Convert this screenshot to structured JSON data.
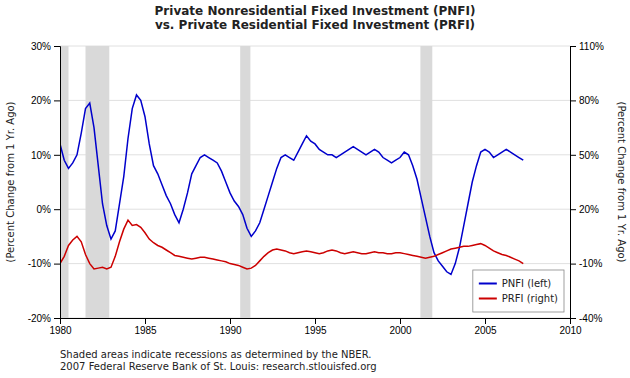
{
  "chart_data": {
    "type": "line",
    "title": "Private Nonresidential Fixed Investment (PNFI)\nvs.  Private Residential Fixed Investment (PRFI)",
    "y_label": "(Percent Change from 1 Yr. Ago)",
    "y2_label": "(Percent Change from 1 Yr. Ago)",
    "annotations": [
      "Shaded areas indicate recessions as determined by the NBER.\n2007 Federal Reserve Bank of St. Louis: research.stlouisfed.org"
    ],
    "xlim": [
      1980,
      2010
    ],
    "xticks": [
      1980,
      1985,
      1990,
      1995,
      2000,
      2005,
      2010
    ],
    "ylim": [
      -20,
      30
    ],
    "yticks": [
      {
        "value": -20,
        "label": "-20%"
      },
      {
        "value": -10,
        "label": "-10%"
      },
      {
        "value": 0,
        "label": "0%"
      },
      {
        "value": 10,
        "label": "10%"
      },
      {
        "value": 20,
        "label": "20%"
      },
      {
        "value": 30,
        "label": "30%"
      }
    ],
    "y2lim": [
      -40,
      110
    ],
    "y2ticks": [
      {
        "value": -40,
        "label": "-40%"
      },
      {
        "value": -10,
        "label": "-10%"
      },
      {
        "value": 20,
        "label": "20%"
      },
      {
        "value": 50,
        "label": "50%"
      },
      {
        "value": 80,
        "label": "80%"
      },
      {
        "value": 110,
        "label": "110%"
      }
    ],
    "grid": true,
    "legend": "lower right",
    "recession_bands": [
      [
        1980.0,
        1980.5
      ],
      [
        1981.5,
        1982.9
      ],
      [
        1990.6,
        1991.2
      ],
      [
        2001.2,
        2001.9
      ]
    ],
    "x": [
      1980.0,
      1980.25,
      1980.5,
      1980.75,
      1981.0,
      1981.25,
      1981.5,
      1981.75,
      1982.0,
      1982.25,
      1982.5,
      1982.75,
      1983.0,
      1983.25,
      1983.5,
      1983.75,
      1984.0,
      1984.25,
      1984.5,
      1984.75,
      1985.0,
      1985.25,
      1985.5,
      1985.75,
      1986.0,
      1986.25,
      1986.5,
      1986.75,
      1987.0,
      1987.25,
      1987.5,
      1987.75,
      1988.0,
      1988.25,
      1988.5,
      1988.75,
      1989.0,
      1989.25,
      1989.5,
      1989.75,
      1990.0,
      1990.25,
      1990.5,
      1990.75,
      1991.0,
      1991.25,
      1991.5,
      1991.75,
      1992.0,
      1992.25,
      1992.5,
      1992.75,
      1993.0,
      1993.25,
      1993.5,
      1993.75,
      1994.0,
      1994.25,
      1994.5,
      1994.75,
      1995.0,
      1995.25,
      1995.5,
      1995.75,
      1996.0,
      1996.25,
      1996.5,
      1996.75,
      1997.0,
      1997.25,
      1997.5,
      1997.75,
      1998.0,
      1998.25,
      1998.5,
      1998.75,
      1999.0,
      1999.25,
      1999.5,
      1999.75,
      2000.0,
      2000.25,
      2000.5,
      2000.75,
      2001.0,
      2001.25,
      2001.5,
      2001.75,
      2002.0,
      2002.25,
      2002.5,
      2002.75,
      2003.0,
      2003.25,
      2003.5,
      2003.75,
      2004.0,
      2004.25,
      2004.5,
      2004.75,
      2005.0,
      2005.25,
      2005.5,
      2005.75,
      2006.0,
      2006.25,
      2006.5,
      2006.75,
      2007.0,
      2007.25
    ],
    "series": [
      {
        "name": "PNFI (left)",
        "color": "#0000cc",
        "axis": "y",
        "values": [
          12.0,
          9.0,
          7.5,
          8.5,
          10.0,
          14.0,
          18.5,
          19.5,
          15.0,
          8.0,
          1.0,
          -3.0,
          -5.5,
          -4.0,
          1.0,
          6.0,
          13.0,
          18.5,
          21.0,
          20.0,
          17.0,
          12.0,
          8.0,
          6.5,
          4.5,
          2.5,
          1.0,
          -1.0,
          -2.5,
          0.0,
          3.0,
          6.5,
          8.0,
          9.5,
          10.0,
          9.5,
          9.0,
          8.5,
          7.0,
          5.0,
          3.0,
          1.5,
          0.5,
          -1.0,
          -3.5,
          -5.0,
          -4.0,
          -2.5,
          0.0,
          2.5,
          5.0,
          7.5,
          9.5,
          10.0,
          9.5,
          9.0,
          10.5,
          12.0,
          13.5,
          12.5,
          12.0,
          11.0,
          10.5,
          10.0,
          10.0,
          9.5,
          10.0,
          10.5,
          11.0,
          11.5,
          11.0,
          10.5,
          10.0,
          10.5,
          11.0,
          10.5,
          9.5,
          9.0,
          8.5,
          9.0,
          9.5,
          10.5,
          10.0,
          8.0,
          5.5,
          2.0,
          -1.5,
          -5.0,
          -8.0,
          -9.5,
          -10.5,
          -11.5,
          -12.0,
          -10.0,
          -7.0,
          -3.0,
          1.0,
          5.0,
          8.0,
          10.5,
          11.0,
          10.5,
          9.5,
          10.0,
          10.5,
          11.0,
          10.5,
          10.0,
          9.5,
          9.0
        ]
      },
      {
        "name": "PRFI (right)",
        "color": "#cc0000",
        "axis": "y2",
        "values": [
          -10.0,
          -6.0,
          0.0,
          3.0,
          5.0,
          2.0,
          -5.0,
          -10.0,
          -13.0,
          -12.5,
          -12.0,
          -13.0,
          -12.0,
          -6.0,
          2.0,
          9.0,
          14.0,
          11.0,
          11.5,
          10.0,
          7.0,
          3.5,
          1.5,
          0.0,
          -1.0,
          -2.5,
          -4.0,
          -5.5,
          -6.0,
          -6.5,
          -7.0,
          -7.5,
          -7.0,
          -6.5,
          -6.5,
          -7.0,
          -7.5,
          -8.0,
          -8.5,
          -9.0,
          -10.0,
          -10.5,
          -11.0,
          -12.0,
          -13.0,
          -12.5,
          -11.0,
          -8.5,
          -6.0,
          -4.0,
          -2.5,
          -2.0,
          -2.5,
          -3.0,
          -4.0,
          -4.5,
          -4.0,
          -3.5,
          -3.0,
          -3.5,
          -4.0,
          -4.5,
          -4.0,
          -3.0,
          -2.5,
          -3.0,
          -4.0,
          -4.5,
          -4.0,
          -3.5,
          -4.0,
          -4.5,
          -4.5,
          -4.0,
          -3.5,
          -4.0,
          -4.0,
          -4.5,
          -4.5,
          -4.0,
          -4.0,
          -4.5,
          -5.0,
          -5.5,
          -6.0,
          -6.5,
          -7.0,
          -6.5,
          -6.0,
          -5.0,
          -4.0,
          -3.0,
          -2.0,
          -1.5,
          -1.0,
          -0.5,
          -0.5,
          0.0,
          0.5,
          1.0,
          0.0,
          -1.5,
          -3.0,
          -4.0,
          -5.0,
          -5.5,
          -6.5,
          -7.5,
          -8.5,
          -10.0
        ]
      }
    ]
  }
}
